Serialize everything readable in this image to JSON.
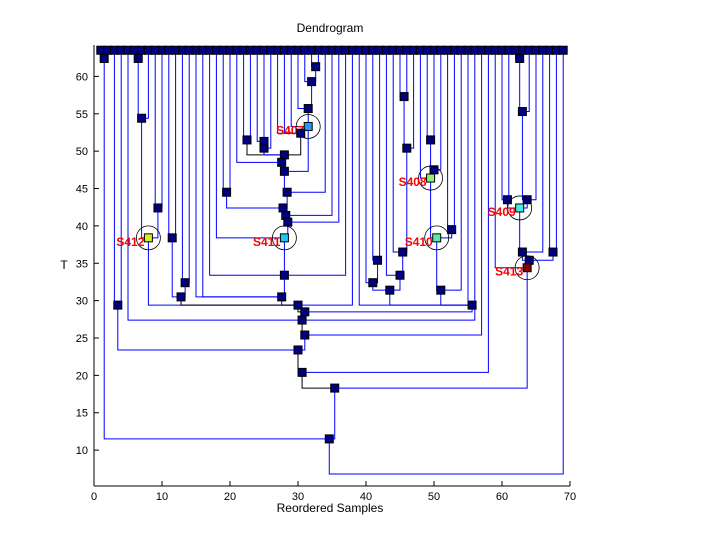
{
  "chart_data": {
    "type": "dendrogram",
    "title": "Dendrogram",
    "xlabel": "Reordered Samples",
    "ylabel": "T",
    "xlim": [
      0,
      70
    ],
    "ylim": [
      5.2,
      64.2
    ],
    "xticks": [
      0,
      10,
      20,
      30,
      40,
      50,
      60,
      70
    ],
    "yticks": [
      10,
      15,
      20,
      25,
      30,
      35,
      40,
      45,
      50,
      55,
      60
    ],
    "leaf_T": 63.5,
    "leaf_count": 69,
    "line_color": "#0000ff",
    "node_color": "#000080",
    "label_color": "#ff0000",
    "nodes": [
      {
        "id": "A",
        "x": 1.5,
        "T": 62.4,
        "children": [
          1,
          2
        ]
      },
      {
        "id": "B",
        "x": 3.5,
        "T": 29.4,
        "children": [
          3,
          4
        ]
      },
      {
        "id": "C0",
        "x": 6.5,
        "T": 62.4,
        "children": [
          6,
          7
        ]
      },
      {
        "id": "C1",
        "x": 7,
        "T": 54.4,
        "children": [
          "C0",
          8
        ]
      },
      {
        "id": "C2",
        "x": 9.4,
        "T": 42.4,
        "children": [
          9,
          10
        ]
      },
      {
        "id": "S412",
        "x": 8,
        "T": 38.4,
        "children": [
          "C1",
          "C2"
        ],
        "label": "S412",
        "color": "#d4f020"
      },
      {
        "id": "C3",
        "x": 11.5,
        "T": 38.4,
        "children": [
          11,
          12
        ]
      },
      {
        "id": "C4",
        "x": 13.4,
        "T": 32.4,
        "children": [
          13,
          14
        ]
      },
      {
        "id": "E",
        "x": 12.8,
        "T": 30.5,
        "children": [
          "C3",
          "C4"
        ],
        "black": true
      },
      {
        "id": "Q1",
        "x": 32.6,
        "T": 61.3,
        "children": [
          32,
          33
        ]
      },
      {
        "id": "Q2",
        "x": 32,
        "T": 59.3,
        "children": [
          "Q1",
          31
        ]
      },
      {
        "id": "Q3",
        "x": 31.5,
        "T": 55.7,
        "children": [
          "Q2",
          30
        ]
      },
      {
        "id": "S407",
        "x": 31.5,
        "T": 53.3,
        "children": [
          "Q3",
          29
        ],
        "label": "S407",
        "color": "#1e9bff"
      },
      {
        "id": "Q5",
        "x": 22.5,
        "T": 51.5,
        "children": [
          22,
          23
        ],
        "black": true
      },
      {
        "id": "Q6",
        "x": 25,
        "T": 51.3,
        "children": [
          24,
          25
        ]
      },
      {
        "id": "Q7",
        "x": 25,
        "T": 50.4,
        "children": [
          "Q6",
          26
        ]
      },
      {
        "id": "Q8",
        "x": 30.4,
        "T": 52.4,
        "children": [
          27,
          28
        ],
        "black": true
      },
      {
        "id": "Q9",
        "x": 28,
        "T": 49.5,
        "children": [
          "Q5",
          "Q7",
          "Q8"
        ]
      },
      {
        "id": "Q10",
        "x": 27.6,
        "T": 48.5,
        "children": [
          "Q9",
          21
        ],
        "black": true
      },
      {
        "id": "Q11",
        "x": 28,
        "T": 47.3,
        "children": [
          "Q10",
          "S407"
        ]
      },
      {
        "id": "Q12",
        "x": 28.4,
        "T": 44.5,
        "children": [
          "Q11",
          34
        ]
      },
      {
        "id": "Q13",
        "x": 19.5,
        "T": 44.5,
        "children": [
          19,
          20
        ]
      },
      {
        "id": "Q14",
        "x": 27.8,
        "T": 42.4,
        "children": [
          "Q12",
          "Q13"
        ],
        "black": true
      },
      {
        "id": "Q15",
        "x": 28.2,
        "T": 41.4,
        "children": [
          "Q14",
          35
        ]
      },
      {
        "id": "Q16",
        "x": 28.5,
        "T": 40.5,
        "children": [
          "Q15",
          36
        ]
      },
      {
        "id": "S411",
        "x": 28,
        "T": 38.4,
        "children": [
          "Q16",
          18
        ],
        "label": "S411",
        "color": "#20c8f0"
      },
      {
        "id": "Q17",
        "x": 28,
        "T": 33.4,
        "children": [
          "S411",
          17,
          37
        ]
      },
      {
        "id": "F",
        "x": 27.6,
        "T": 30.5,
        "children": [
          "Q17",
          15,
          16
        ]
      },
      {
        "id": "G",
        "x": 30,
        "T": 29.4,
        "children": [
          "F",
          "S412",
          "E",
          38
        ],
        "black": true
      },
      {
        "id": "R1",
        "x": 45.6,
        "T": 57.3,
        "children": [
          45,
          46
        ]
      },
      {
        "id": "R2",
        "x": 46,
        "T": 50.4,
        "children": [
          "R1",
          47
        ]
      },
      {
        "id": "R3",
        "x": 49.5,
        "T": 51.5,
        "children": [
          49,
          50
        ]
      },
      {
        "id": "R4",
        "x": 50,
        "T": 47.5,
        "children": [
          "R3",
          51
        ]
      },
      {
        "id": "S408",
        "x": 49.5,
        "T": 46.4,
        "children": [
          "R4",
          48
        ],
        "label": "S408",
        "color": "#90f070"
      },
      {
        "id": "R5",
        "x": 52.6,
        "T": 39.5,
        "children": [
          52,
          53
        ]
      },
      {
        "id": "S410",
        "x": 50.4,
        "T": 38.4,
        "children": [
          "S408",
          "R5"
        ],
        "label": "S410",
        "color": "#50f0a0"
      },
      {
        "id": "R6",
        "x": 45.4,
        "T": 36.5,
        "children": [
          "R2",
          44
        ]
      },
      {
        "id": "R7",
        "x": 41.7,
        "T": 35.4,
        "children": [
          41,
          42
        ]
      },
      {
        "id": "R8",
        "x": 45,
        "T": 33.4,
        "children": [
          "R6",
          43
        ]
      },
      {
        "id": "R9",
        "x": 41,
        "T": 32.4,
        "children": [
          "R7",
          40
        ]
      },
      {
        "id": "R10",
        "x": 43.5,
        "T": 31.4,
        "children": [
          "R9",
          "R8"
        ]
      },
      {
        "id": "R11",
        "x": 51,
        "T": 31.4,
        "children": [
          "S410",
          54
        ]
      },
      {
        "id": "W",
        "x": 55.6,
        "T": 29.4,
        "children": [
          "R10",
          "R11",
          55,
          39
        ]
      },
      {
        "id": "H",
        "x": 31,
        "T": 28.5,
        "children": [
          "G",
          "W"
        ]
      },
      {
        "id": "I",
        "x": 30.6,
        "T": 27.4,
        "children": [
          "H",
          5,
          56
        ],
        "black": true
      },
      {
        "id": "J",
        "x": 31,
        "T": 25.4,
        "children": [
          "I",
          57
        ]
      },
      {
        "id": "T1",
        "x": 62.6,
        "T": 62.4,
        "children": [
          62,
          63
        ]
      },
      {
        "id": "T2",
        "x": 63,
        "T": 55.3,
        "children": [
          "T1",
          64
        ]
      },
      {
        "id": "T3",
        "x": 60.8,
        "T": 43.5,
        "children": [
          60,
          61
        ]
      },
      {
        "id": "T4",
        "x": 63.7,
        "T": 43.5,
        "children": [
          "T2",
          65
        ]
      },
      {
        "id": "S409",
        "x": 62.6,
        "T": 42.4,
        "children": [
          "T3",
          "T4"
        ],
        "label": "S409",
        "color": "#40f0e0"
      },
      {
        "id": "T5",
        "x": 63,
        "T": 36.5,
        "children": [
          "S409",
          66
        ]
      },
      {
        "id": "T6",
        "x": 67.5,
        "T": 36.5,
        "children": [
          67,
          68
        ]
      },
      {
        "id": "T7",
        "x": 64,
        "T": 35.4,
        "children": [
          "T5",
          "T6"
        ]
      },
      {
        "id": "S413",
        "x": 63.7,
        "T": 34.4,
        "children": [
          "T7",
          59
        ],
        "label": "S413",
        "color": "#800000"
      },
      {
        "id": "K",
        "x": 30,
        "T": 23.4,
        "children": [
          "J",
          "B"
        ],
        "black": true
      },
      {
        "id": "L",
        "x": 30.6,
        "T": 20.4,
        "children": [
          "K",
          58
        ],
        "black": true
      },
      {
        "id": "M",
        "x": 35.4,
        "T": 18.3,
        "children": [
          "L",
          "S413"
        ]
      },
      {
        "id": "N",
        "x": 34.6,
        "T": 11.5,
        "children": [
          "A",
          "M"
        ]
      },
      {
        "id": "ROOT",
        "x": 35,
        "T": 6.8,
        "children": [
          "N",
          69
        ],
        "box": false
      }
    ]
  }
}
